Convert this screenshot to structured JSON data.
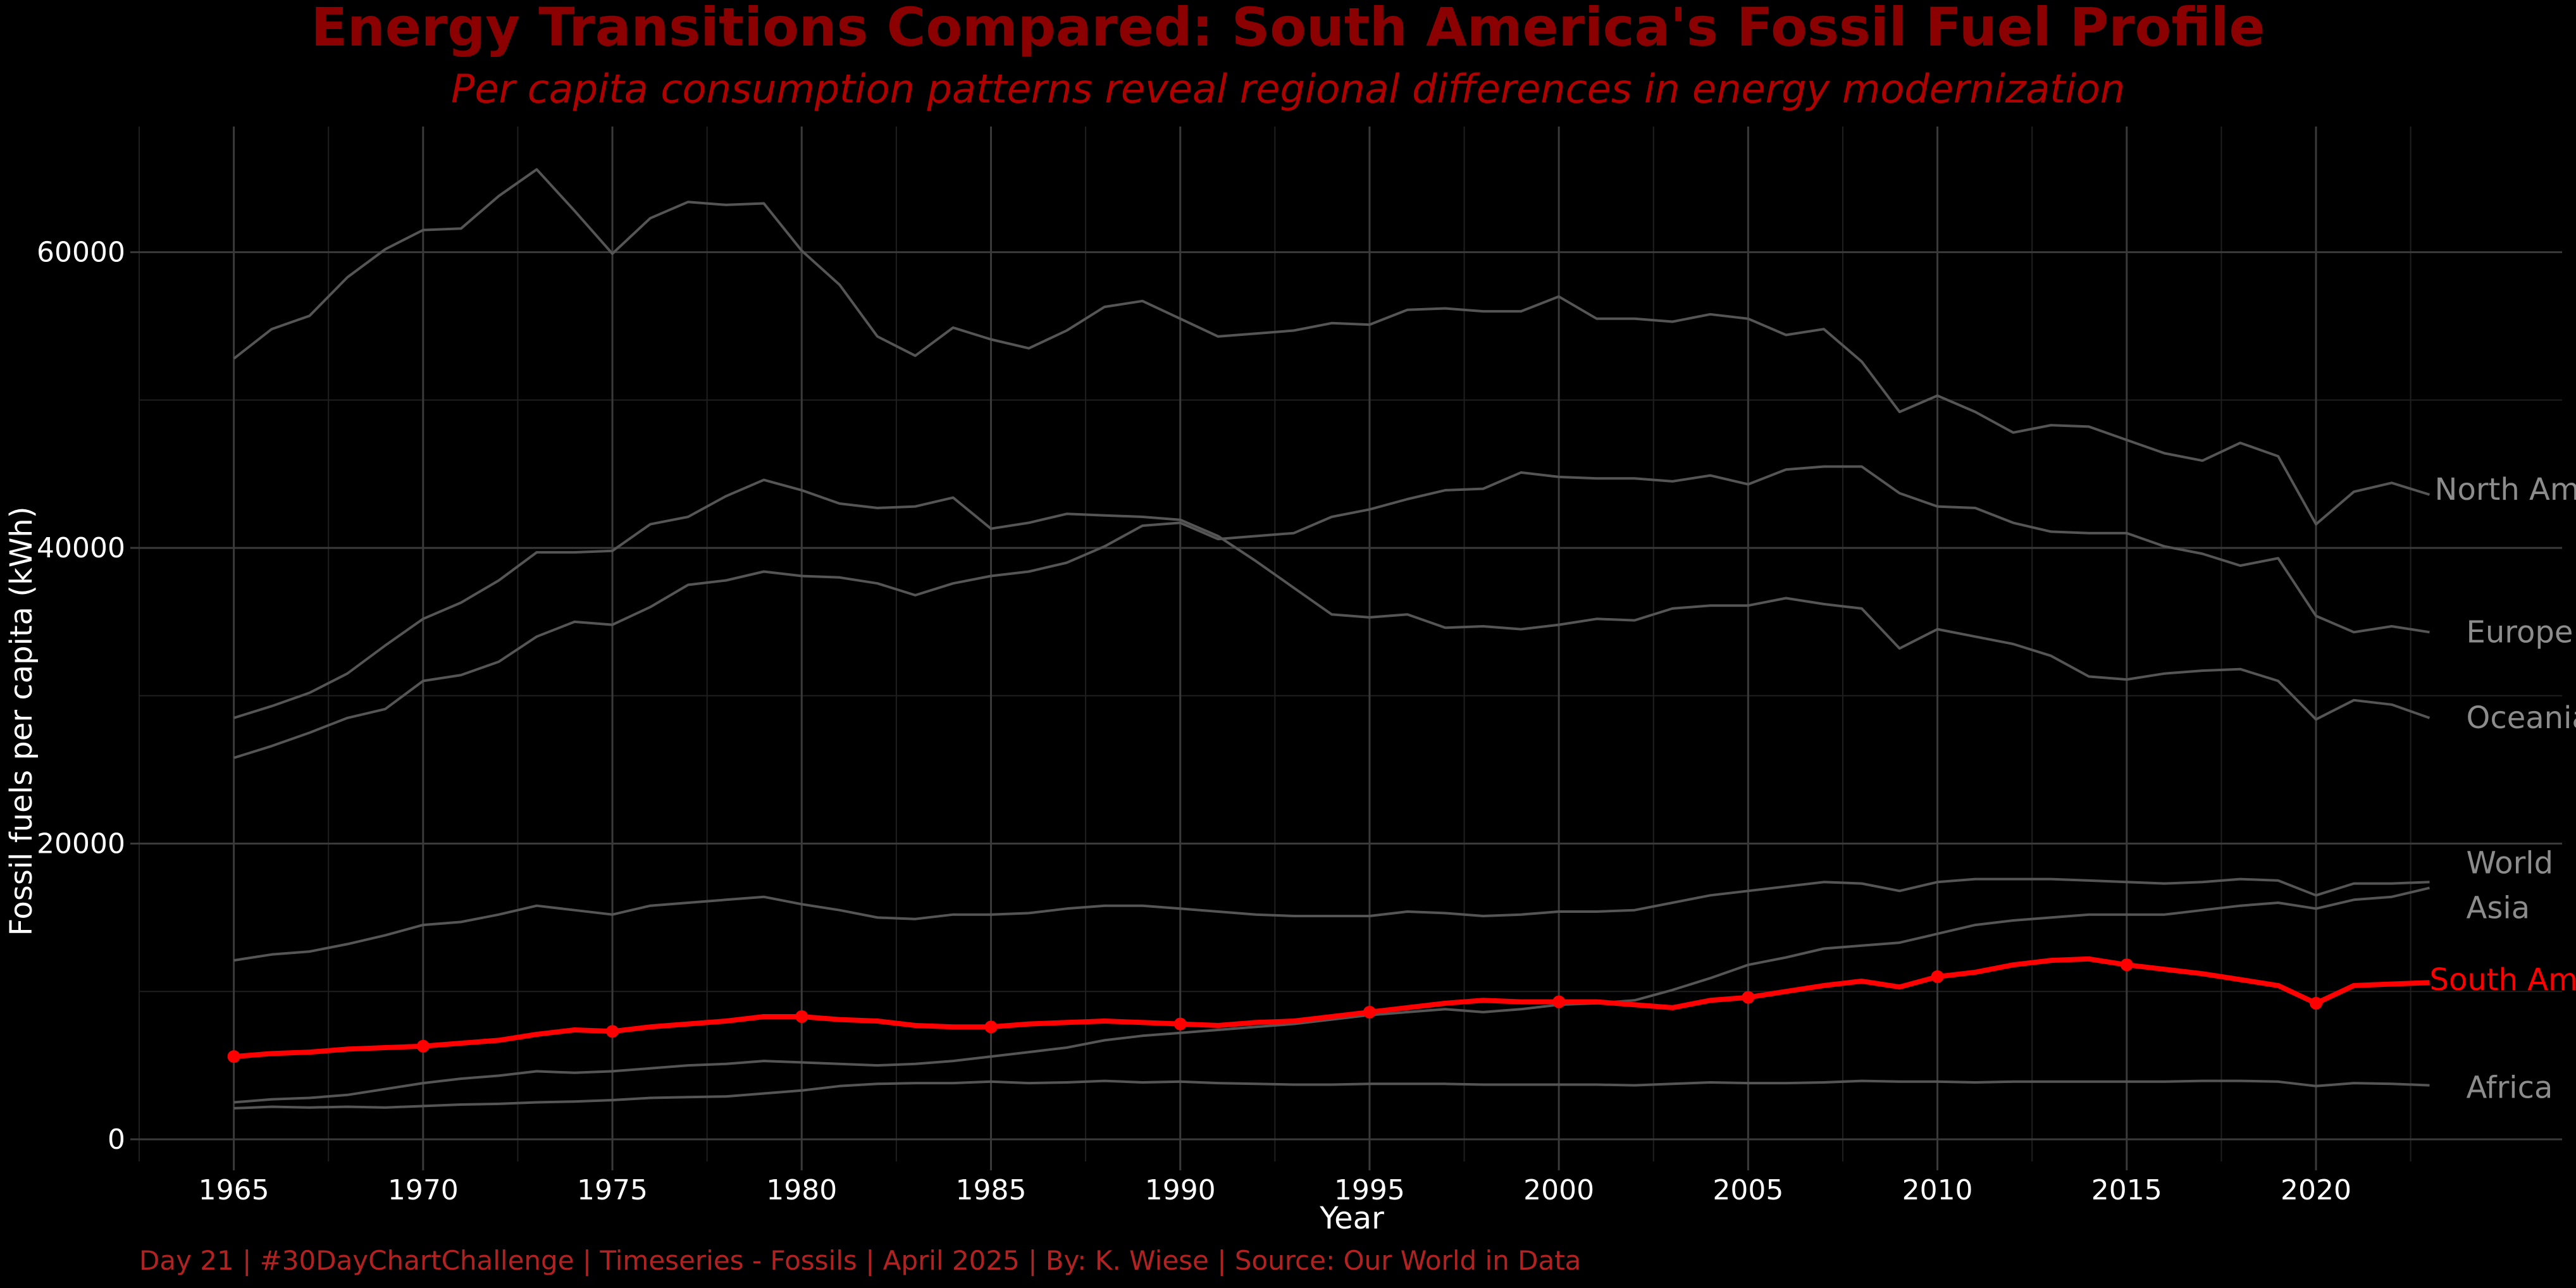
{
  "chart_data": {
    "type": "line",
    "title": "Energy Transitions Compared: South America's Fossil Fuel Profile",
    "subtitle": "Per capita consumption patterns reveal regional differences in energy modernization",
    "xlabel": "Year",
    "ylabel": "Fossil fuels per capita (kWh)",
    "caption": "Day 21 | #30DayChartChallenge | Timeseries - Fossils | April 2025 | By: K. Wiese | Source: Our World in Data",
    "xlim": [
      1962.5,
      2026.5
    ],
    "ylim": [
      -1500,
      68500
    ],
    "x_ticks": [
      1965,
      1970,
      1975,
      1980,
      1985,
      1990,
      1995,
      2000,
      2005,
      2010,
      2015,
      2020
    ],
    "x_tick_labels": [
      "1965",
      "1970",
      "1975",
      "1980",
      "1985",
      "1990",
      "1995",
      "2000",
      "2005",
      "2010",
      "2015",
      "2020"
    ],
    "y_ticks": [
      0,
      20000,
      40000,
      60000
    ],
    "y_tick_labels": [
      "0",
      "20000",
      "40000",
      "60000"
    ],
    "grid": true,
    "legend": "direct labels at line ends",
    "colors": {
      "background": "#000000",
      "title": "#8b0000",
      "highlight": "#ff0000",
      "context_line": "#555555",
      "context_label": "#8c8c8c",
      "axis_text": "#ffffff",
      "caption": "#b22222",
      "grid_major": "#3a3a3a",
      "grid_minor": "#1f1f1f"
    },
    "x": [
      1965,
      1966,
      1967,
      1968,
      1969,
      1970,
      1971,
      1972,
      1973,
      1974,
      1975,
      1976,
      1977,
      1978,
      1979,
      1980,
      1981,
      1982,
      1983,
      1984,
      1985,
      1986,
      1987,
      1988,
      1989,
      1990,
      1991,
      1992,
      1993,
      1994,
      1995,
      1996,
      1997,
      1998,
      1999,
      2000,
      2001,
      2002,
      2003,
      2004,
      2005,
      2006,
      2007,
      2008,
      2009,
      2010,
      2011,
      2012,
      2013,
      2014,
      2015,
      2016,
      2017,
      2018,
      2019,
      2020,
      2021,
      2022,
      2023
    ],
    "series": [
      {
        "name": "North America",
        "highlight": false,
        "values": [
          52800,
          54800,
          55700,
          58300,
          60200,
          61500,
          61600,
          63800,
          65600,
          62800,
          59900,
          62300,
          63400,
          63200,
          63300,
          60100,
          57800,
          54300,
          53000,
          54900,
          54100,
          53500,
          54700,
          56300,
          56700,
          55500,
          54300,
          54500,
          54700,
          55200,
          55100,
          56100,
          56200,
          56000,
          56000,
          57000,
          55500,
          55500,
          55300,
          55800,
          55500,
          54400,
          54800,
          52600,
          49200,
          50300,
          49200,
          47800,
          48300,
          48200,
          47300,
          46400,
          45900,
          47100,
          46200,
          41600,
          43800,
          44400,
          43600
        ]
      },
      {
        "name": "Oceania",
        "highlight": false,
        "values": [
          28500,
          29300,
          30200,
          31500,
          33400,
          35200,
          36300,
          37800,
          39700,
          39700,
          39800,
          41600,
          42100,
          43500,
          44600,
          43900,
          43000,
          42700,
          42800,
          43400,
          41300,
          41700,
          42300,
          42200,
          42100,
          41900,
          40800,
          39100,
          37300,
          35500,
          35300,
          35500,
          34600,
          34700,
          34500,
          34800,
          35200,
          35100,
          35900,
          36100,
          36100,
          36600,
          36200,
          35900,
          33200,
          34500,
          34000,
          33500,
          32700,
          31300,
          31100,
          31500,
          31700,
          31800,
          31000,
          28400,
          29700,
          29400,
          28500
        ]
      },
      {
        "name": "Europe",
        "highlight": false,
        "values": [
          25800,
          26600,
          27500,
          28500,
          29100,
          31000,
          31400,
          32300,
          34000,
          35000,
          34800,
          36000,
          37500,
          37800,
          38400,
          38100,
          38000,
          37600,
          36800,
          37600,
          38100,
          38400,
          39000,
          40100,
          41500,
          41700,
          40600,
          40800,
          41000,
          42100,
          42600,
          43300,
          43900,
          44000,
          45100,
          44800,
          44700,
          44700,
          44500,
          44900,
          44300,
          45300,
          45500,
          45500,
          43700,
          42800,
          42700,
          41700,
          41100,
          41000,
          41000,
          40100,
          39600,
          38800,
          39300,
          35400,
          34300,
          34700,
          34300
        ]
      },
      {
        "name": "World",
        "highlight": false,
        "values": [
          12100,
          12500,
          12700,
          13200,
          13800,
          14500,
          14700,
          15200,
          15800,
          15500,
          15200,
          15800,
          16000,
          16200,
          16400,
          15900,
          15500,
          15000,
          14900,
          15200,
          15200,
          15300,
          15600,
          15800,
          15800,
          15600,
          15400,
          15200,
          15100,
          15100,
          15100,
          15400,
          15300,
          15100,
          15200,
          15400,
          15400,
          15500,
          16000,
          16500,
          16800,
          17100,
          17400,
          17300,
          16800,
          17400,
          17600,
          17600,
          17600,
          17500,
          17400,
          17300,
          17400,
          17600,
          17500,
          16500,
          17300,
          17300,
          17400
        ]
      },
      {
        "name": "Asia",
        "highlight": false,
        "values": [
          2500,
          2700,
          2800,
          3000,
          3400,
          3800,
          4100,
          4300,
          4600,
          4500,
          4600,
          4800,
          5000,
          5100,
          5300,
          5200,
          5100,
          5000,
          5100,
          5300,
          5600,
          5900,
          6200,
          6700,
          7000,
          7200,
          7400,
          7600,
          7800,
          8100,
          8400,
          8600,
          8800,
          8600,
          8800,
          9100,
          9200,
          9400,
          10100,
          10900,
          11800,
          12300,
          12900,
          13100,
          13300,
          13900,
          14500,
          14800,
          15000,
          15200,
          15200,
          15200,
          15500,
          15800,
          16000,
          15600,
          16200,
          16400,
          17000
        ]
      },
      {
        "name": "Africa",
        "highlight": false,
        "values": [
          2100,
          2200,
          2150,
          2200,
          2150,
          2250,
          2350,
          2400,
          2500,
          2550,
          2650,
          2800,
          2850,
          2900,
          3100,
          3300,
          3600,
          3750,
          3800,
          3800,
          3900,
          3800,
          3850,
          3950,
          3850,
          3900,
          3800,
          3750,
          3700,
          3700,
          3750,
          3750,
          3750,
          3700,
          3700,
          3700,
          3700,
          3650,
          3750,
          3850,
          3800,
          3800,
          3850,
          3950,
          3900,
          3900,
          3850,
          3900,
          3900,
          3900,
          3900,
          3900,
          3950,
          3950,
          3900,
          3600,
          3800,
          3750,
          3650
        ]
      },
      {
        "name": "South America",
        "highlight": true,
        "values": [
          5600,
          5800,
          5900,
          6100,
          6200,
          6300,
          6500,
          6700,
          7100,
          7400,
          7300,
          7600,
          7800,
          8000,
          8300,
          8300,
          8100,
          8000,
          7700,
          7600,
          7600,
          7800,
          7900,
          8000,
          7900,
          7800,
          7700,
          7900,
          8000,
          8300,
          8600,
          8900,
          9200,
          9400,
          9300,
          9300,
          9300,
          9100,
          8900,
          9400,
          9600,
          10000,
          10400,
          10700,
          10300,
          11000,
          11300,
          11800,
          12100,
          12200,
          11800,
          11500,
          11200,
          10800,
          10400,
          9200,
          10400,
          10500,
          10600
        ]
      }
    ],
    "marker_years": [
      1965,
      1970,
      1975,
      1980,
      1985,
      1990,
      1995,
      2000,
      2005,
      2010,
      2015,
      2020
    ]
  }
}
